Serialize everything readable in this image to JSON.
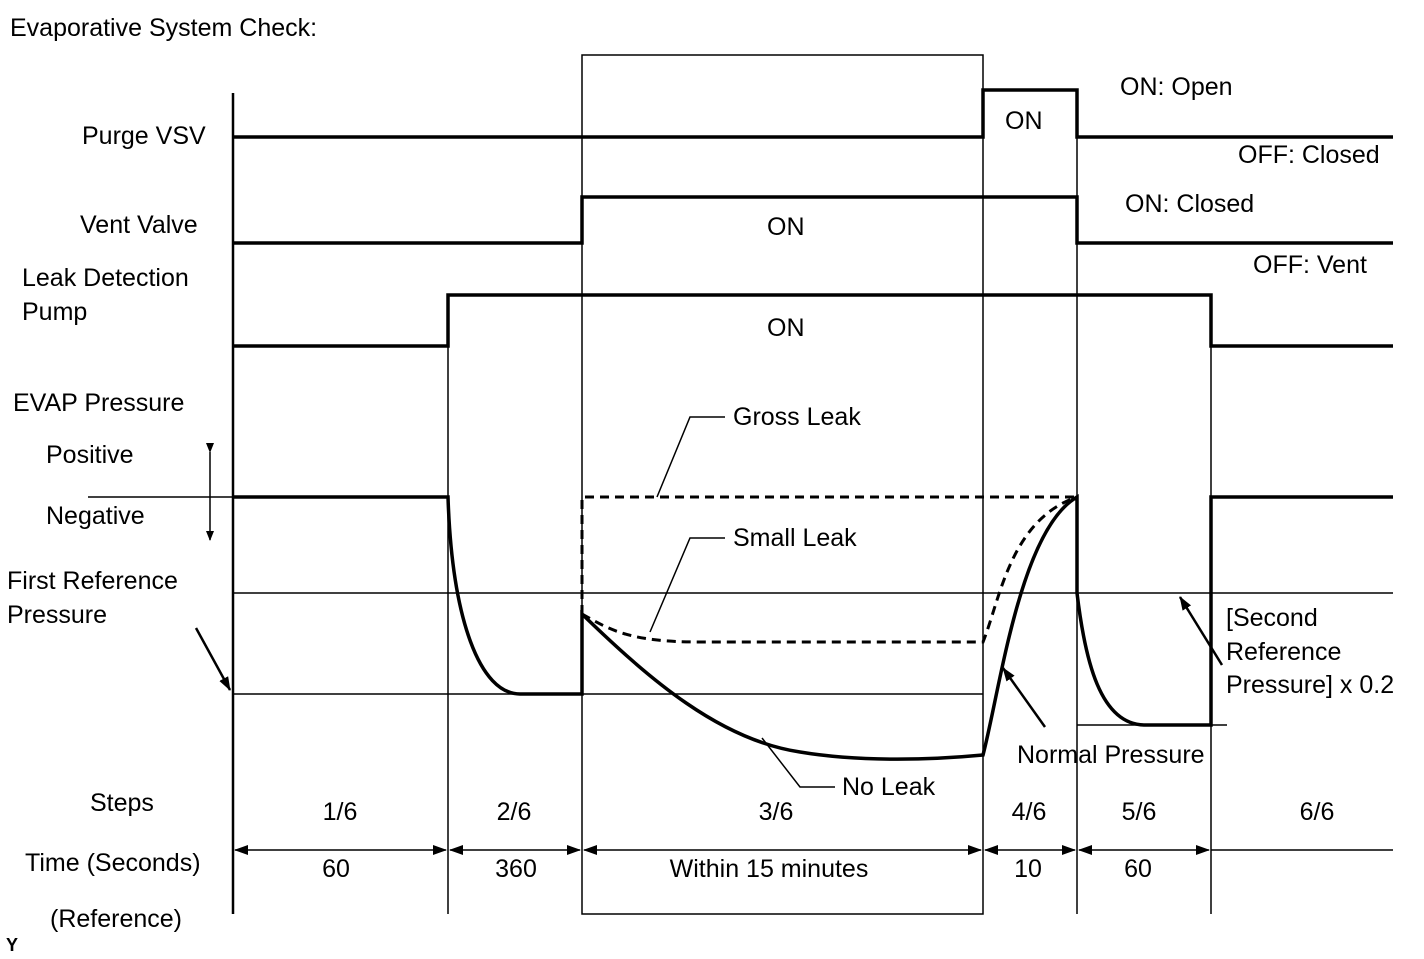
{
  "title": "Evaporative System Check:",
  "signals": {
    "purge_vsv": {
      "label": "Purge VSV",
      "on_text": "ON",
      "on_state": "ON: Open",
      "off_state": "OFF: Closed"
    },
    "vent_valve": {
      "label": "Vent Valve",
      "on_text": "ON",
      "on_state": "ON: Closed",
      "off_state": "OFF: Vent"
    },
    "leak_pump": {
      "label_line1": "Leak Detection",
      "label_line2": "Pump",
      "on_text": "ON"
    }
  },
  "pressure": {
    "label": "EVAP Pressure",
    "positive": "Positive",
    "negative": "Negative",
    "first_ref_line1": "First Reference",
    "first_ref_line2": "Pressure",
    "gross_leak": "Gross Leak",
    "small_leak": "Small Leak",
    "no_leak": "No Leak",
    "normal_pressure": "Normal Pressure",
    "second_ref_line1": "[Second",
    "second_ref_line2": "Reference",
    "second_ref_line3": "Pressure] x 0.2"
  },
  "rows": {
    "steps_label": "Steps",
    "time_label": "Time (Seconds)",
    "reference_label": "(Reference)"
  },
  "steps": [
    {
      "step": "1/6",
      "time": "60"
    },
    {
      "step": "2/6",
      "time": "360"
    },
    {
      "step": "3/6",
      "time": "Within 15 minutes"
    },
    {
      "step": "4/6",
      "time": "10"
    },
    {
      "step": "5/6",
      "time": "60"
    },
    {
      "step": "6/6",
      "time": ""
    }
  ],
  "corner_mark": "Y"
}
